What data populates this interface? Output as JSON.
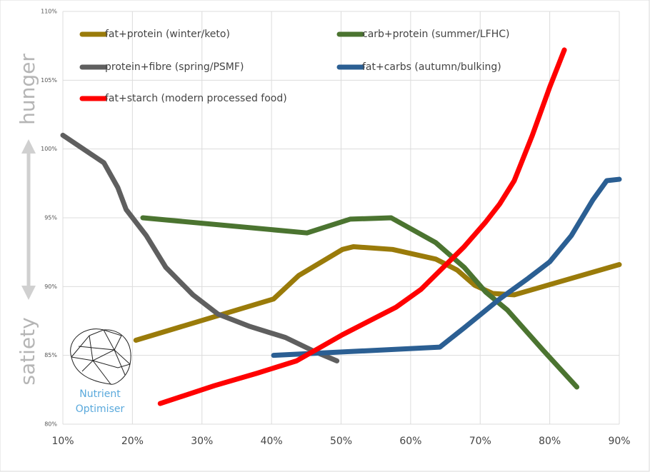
{
  "chart_data": {
    "type": "line",
    "y_annotations": [
      "hunger",
      "satiety"
    ],
    "logo_text": [
      "Nutrient",
      "Optimiser"
    ],
    "xlim": [
      10,
      90
    ],
    "xticks": [
      {
        "value": 10,
        "label": "10%"
      },
      {
        "value": 20,
        "label": "20%"
      },
      {
        "value": 30,
        "label": "30%"
      },
      {
        "value": 40,
        "label": "40%"
      },
      {
        "value": 50,
        "label": "50%"
      },
      {
        "value": 60,
        "label": "60%"
      },
      {
        "value": 70,
        "label": "70%"
      },
      {
        "value": 80,
        "label": "80%"
      },
      {
        "value": 90,
        "label": "90%"
      }
    ],
    "ylim": [
      80,
      110
    ],
    "yticks": [
      {
        "value": 80,
        "label": "80%"
      },
      {
        "value": 85,
        "label": "85%"
      },
      {
        "value": 90,
        "label": "90%"
      },
      {
        "value": 95,
        "label": "95%"
      },
      {
        "value": 100,
        "label": "100%"
      },
      {
        "value": 105,
        "label": "105%"
      },
      {
        "value": 110,
        "label": "110%"
      }
    ],
    "grid": true,
    "series": [
      {
        "name": "fat+protein (winter/keto)",
        "color": "#9a7b0a",
        "x": [
          20.5,
          40.3,
          43.9,
          50.2,
          51.8,
          57.4,
          63.6,
          66.7,
          69.2,
          71.8,
          74.9,
          90
        ],
        "values": [
          86.1,
          89.1,
          90.8,
          92.7,
          92.9,
          92.7,
          92.0,
          91.2,
          90.1,
          89.5,
          89.4,
          91.6
        ]
      },
      {
        "name": "carb+protein (summer/LFHC)",
        "color": "#4b7430",
        "x": [
          21.5,
          45.1,
          51.3,
          57.2,
          63.6,
          67.7,
          70.8,
          73.9,
          79.0,
          83.9
        ],
        "values": [
          95.0,
          93.9,
          94.9,
          95.0,
          93.2,
          91.4,
          89.6,
          88.3,
          85.4,
          82.7
        ]
      },
      {
        "name": "protein+fibre (spring/PSMF)",
        "color": "#5f5f5f",
        "x": [
          10,
          15.9,
          17.9,
          19.1,
          22.0,
          24.8,
          28.7,
          32.3,
          36.9,
          42.0,
          46.1,
          49.4
        ],
        "values": [
          101.0,
          99.0,
          97.2,
          95.6,
          93.7,
          91.4,
          89.4,
          88.0,
          87.1,
          86.3,
          85.3,
          84.6
        ]
      },
      {
        "name": "fat+carbs (autumn/bulking)",
        "color": "#2b5f93",
        "x": [
          40.3,
          64.2,
          67.7,
          72.8,
          76.9,
          80.0,
          83.1,
          86.2,
          88.2,
          90
        ],
        "values": [
          85.0,
          85.6,
          87.0,
          89.1,
          90.6,
          91.8,
          93.7,
          96.3,
          97.7,
          97.8
        ]
      },
      {
        "name": "fat+starch (modern processed food)",
        "color": "#ff0000",
        "x": [
          24.0,
          31.8,
          37.9,
          43.6,
          50.2,
          57.9,
          61.5,
          65.1,
          67.7,
          70.8,
          72.8,
          74.9,
          77.5,
          80.0,
          82.1
        ],
        "values": [
          81.5,
          82.8,
          83.7,
          84.6,
          86.5,
          88.5,
          89.8,
          91.6,
          92.9,
          94.7,
          96.0,
          97.7,
          101.0,
          104.5,
          107.2
        ]
      }
    ]
  }
}
